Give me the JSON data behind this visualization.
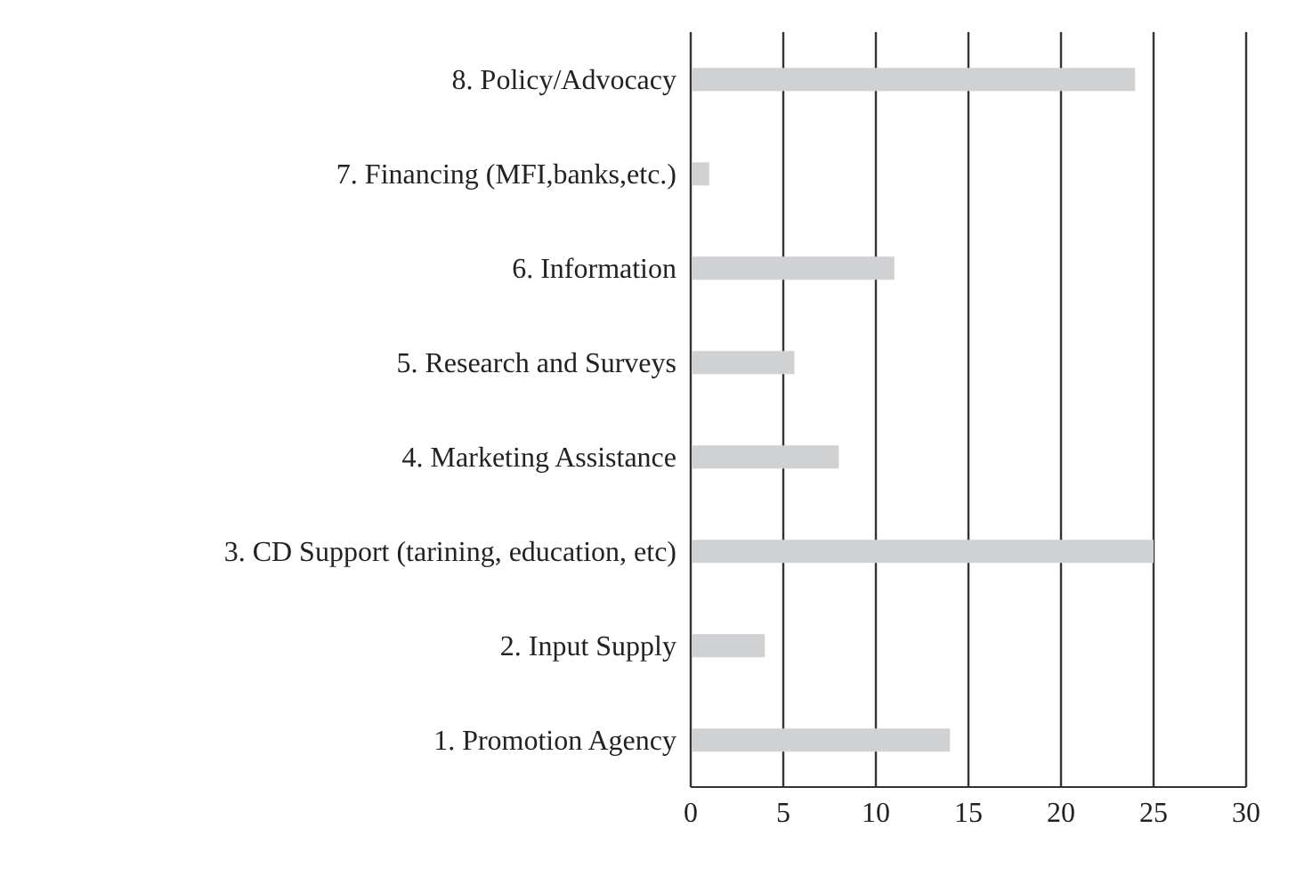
{
  "chart_data": {
    "type": "bar",
    "orientation": "horizontal",
    "categories": [
      "8. Policy/Advocacy",
      "7. Financing (MFI,banks,etc.)",
      "6. Information",
      "5. Research and Surveys",
      "4. Marketing Assistance",
      "3. CD Support (tarining, education, etc)",
      "2. Input Supply",
      "1. Promotion Agency"
    ],
    "values": [
      24,
      1,
      11,
      5.6,
      8,
      25,
      4,
      14
    ],
    "color": "#d0d1d3",
    "xlim": [
      0,
      30
    ],
    "xticks": [
      0,
      5,
      10,
      15,
      20,
      25,
      30
    ],
    "grid": "x"
  }
}
